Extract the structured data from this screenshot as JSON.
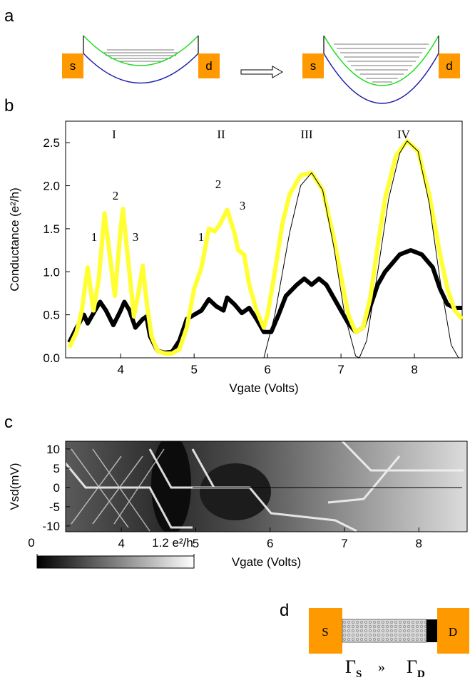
{
  "panel_labels": [
    "a",
    "b",
    "c",
    "d"
  ],
  "diagram_a": {
    "source": "s",
    "drain": "d"
  },
  "diagram_d": {
    "source": "S",
    "drain": "D",
    "left": {
      "symbol": "Γ",
      "sub": "S"
    },
    "relation": "»",
    "right": {
      "symbol": "Γ",
      "sub": "D"
    }
  },
  "chart_data": [
    {
      "type": "line",
      "xlabel": "Vgate (Volts)",
      "ylabel": "Conductance (e²/h)",
      "annotations": [
        "I",
        "II",
        "III",
        "IV",
        "1",
        "2",
        "3",
        "1",
        "2",
        "3"
      ],
      "xlim": [
        3.25,
        8.65
      ],
      "xticks": [
        4,
        5,
        6,
        7,
        8
      ],
      "ylim": [
        0,
        2.75
      ],
      "yticks": [
        {
          "value": 0,
          "label": "0.0"
        },
        0.5,
        {
          "value": 1,
          "label": "1.0"
        },
        1.5,
        {
          "value": 2,
          "label": "2.0"
        },
        2.5
      ],
      "series": [
        {
          "color": "#000000",
          "width": 6,
          "x": [
            3.3,
            3.4,
            3.5,
            3.55,
            3.65,
            3.72,
            3.8,
            3.9,
            4.0,
            4.05,
            4.12,
            4.2,
            4.3,
            4.35,
            4.4,
            4.5,
            4.6,
            4.7,
            4.8,
            4.9,
            5.0,
            5.1,
            5.2,
            5.3,
            5.4,
            5.45,
            5.55,
            5.65,
            5.75,
            5.85,
            5.95,
            6.05,
            6.15,
            6.25,
            6.4,
            6.5,
            6.6,
            6.7,
            6.8,
            6.9,
            7.0,
            7.1,
            7.2,
            7.3,
            7.4,
            7.5,
            7.6,
            7.7,
            7.8,
            7.95,
            8.1,
            8.25,
            8.35,
            8.45,
            8.55,
            8.65
          ],
          "values": [
            0.18,
            0.35,
            0.5,
            0.4,
            0.55,
            0.65,
            0.55,
            0.38,
            0.55,
            0.65,
            0.55,
            0.35,
            0.45,
            0.48,
            0.25,
            0.08,
            0.06,
            0.07,
            0.2,
            0.45,
            0.5,
            0.55,
            0.68,
            0.6,
            0.55,
            0.7,
            0.62,
            0.52,
            0.58,
            0.45,
            0.3,
            0.3,
            0.5,
            0.72,
            0.85,
            0.92,
            0.85,
            0.92,
            0.85,
            0.7,
            0.55,
            0.4,
            0.3,
            0.35,
            0.6,
            0.85,
            1.0,
            1.1,
            1.2,
            1.25,
            1.2,
            1.05,
            0.8,
            0.62,
            0.58,
            0.58
          ]
        },
        {
          "color": "#ffff33",
          "width": 6,
          "x": [
            3.3,
            3.4,
            3.47,
            3.55,
            3.63,
            3.7,
            3.78,
            3.85,
            3.92,
            4.0,
            4.03,
            4.1,
            4.18,
            4.25,
            4.3,
            4.36,
            4.42,
            4.5,
            4.6,
            4.7,
            4.8,
            4.9,
            5.0,
            5.1,
            5.2,
            5.28,
            5.35,
            5.45,
            5.55,
            5.6,
            5.68,
            5.75,
            5.85,
            5.95,
            6.0,
            6.1,
            6.2,
            6.3,
            6.45,
            6.6,
            6.75,
            6.9,
            7.0,
            7.1,
            7.2,
            7.3,
            7.4,
            7.5,
            7.6,
            7.75,
            7.9,
            8.05,
            8.2,
            8.35,
            8.45,
            8.55,
            8.65
          ],
          "values": [
            0.12,
            0.3,
            0.55,
            1.05,
            0.55,
            0.9,
            1.68,
            1.2,
            0.72,
            1.5,
            1.73,
            1.15,
            0.48,
            0.8,
            1.07,
            0.6,
            0.25,
            0.08,
            0.05,
            0.05,
            0.1,
            0.35,
            0.8,
            1.05,
            1.5,
            1.47,
            1.55,
            1.72,
            1.45,
            1.25,
            1.2,
            0.85,
            0.55,
            0.35,
            0.5,
            1.0,
            1.55,
            1.9,
            2.12,
            2.15,
            1.95,
            1.4,
            0.95,
            0.5,
            0.3,
            0.35,
            0.7,
            1.3,
            1.85,
            2.35,
            2.52,
            2.4,
            1.9,
            1.2,
            0.8,
            0.55,
            0.45
          ]
        },
        {
          "color": "#000000",
          "width": 1,
          "x": [
            5.95,
            6.1,
            6.3,
            6.45,
            6.6,
            6.75,
            6.9,
            7.05,
            7.2,
            7.25,
            7.35,
            7.5,
            7.65,
            7.8,
            7.9,
            8.05,
            8.2,
            8.35,
            8.5,
            8.6
          ],
          "values": [
            0,
            0.5,
            1.45,
            2.0,
            2.15,
            1.95,
            1.3,
            0.5,
            0.02,
            0,
            0.2,
            1.0,
            1.85,
            2.38,
            2.52,
            2.4,
            1.8,
            0.9,
            0.15,
            0
          ]
        }
      ]
    },
    {
      "type": "heatmap",
      "xlabel": "Vgate (Volts)",
      "ylabel": "Vsd(mV)",
      "xlim": [
        3.25,
        8.65
      ],
      "xticks": [
        4,
        5,
        6,
        7,
        8
      ],
      "ylim": [
        -11.5,
        12
      ],
      "yticks": [
        -10,
        -5,
        0,
        5,
        10
      ],
      "colorbar": {
        "lim": [
          0,
          1.2
        ],
        "ticks": [
          0,
          {
            "value": 1.2,
            "label": "1.2 e²/h"
          }
        ]
      }
    }
  ]
}
